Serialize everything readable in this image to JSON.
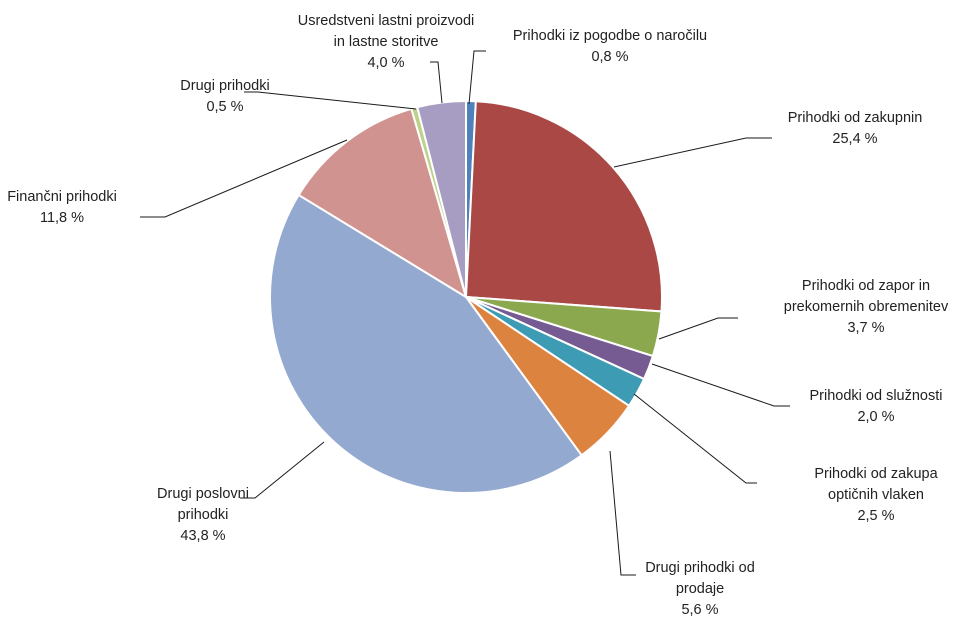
{
  "chart_data": {
    "type": "pie",
    "title": "",
    "start_angle_deg": 0,
    "direction": "clockwise",
    "slices": [
      {
        "name": "Prihodki iz pogodbe o naročilu",
        "lines": [
          "Prihodki iz pogodbe o naročilu"
        ],
        "value": 0.8,
        "value_label": "0,8 %",
        "color": "#4F81BD"
      },
      {
        "name": "Prihodki od zakupnin",
        "lines": [
          "Prihodki od zakupnin"
        ],
        "value": 25.4,
        "value_label": "25,4 %",
        "color": "#A94845"
      },
      {
        "name": "Prihodki od zapor in prekomernih obremenitev",
        "lines": [
          "Prihodki od zapor in",
          "prekomernih obremenitev"
        ],
        "value": 3.7,
        "value_label": "3,7 %",
        "color": "#8CA84E"
      },
      {
        "name": "Prihodki od služnosti",
        "lines": [
          "Prihodki od služnosti"
        ],
        "value": 2.0,
        "value_label": "2,0 %",
        "color": "#765A92"
      },
      {
        "name": "Prihodki od zakupa optičnih vlaken",
        "lines": [
          "Prihodki od zakupa",
          "optičnih vlaken"
        ],
        "value": 2.5,
        "value_label": "2,5 %",
        "color": "#3E9BB4"
      },
      {
        "name": "Drugi prihodki od prodaje",
        "lines": [
          "Drugi prihodki od",
          "prodaje"
        ],
        "value": 5.6,
        "value_label": "5,6 %",
        "color": "#DD8340"
      },
      {
        "name": "Drugi poslovni prihodki",
        "lines": [
          "Drugi poslovni",
          "prihodki"
        ],
        "value": 43.8,
        "value_label": "43,8 %",
        "color": "#94A9D0"
      },
      {
        "name": "Finančni prihodki",
        "lines": [
          "Finančni prihodki"
        ],
        "value": 11.8,
        "value_label": "11,8 %",
        "color": "#D19390"
      },
      {
        "name": "Drugi prihodki",
        "lines": [
          "Drugi prihodki"
        ],
        "value": 0.5,
        "value_label": "0,5 %",
        "color": "#BCD28C"
      },
      {
        "name": "Usredstveni lastni proizvodi in lastne storitve",
        "lines": [
          "Usredstveni lastni proizvodi",
          "in lastne storitve"
        ],
        "value": 4.0,
        "value_label": "4,0 %",
        "color": "#A79DC2"
      }
    ]
  }
}
